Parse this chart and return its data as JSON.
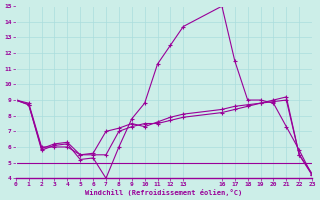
{
  "xlabel": "Windchill (Refroidissement éolien,°C)",
  "bg_color": "#cceee8",
  "line_color": "#990099",
  "grid_color": "#aadddd",
  "xlim": [
    0,
    23
  ],
  "ylim": [
    4,
    15
  ],
  "xticks": [
    0,
    1,
    2,
    3,
    4,
    5,
    6,
    7,
    8,
    9,
    10,
    11,
    12,
    13,
    16,
    17,
    18,
    19,
    20,
    21,
    22,
    23
  ],
  "yticks": [
    4,
    5,
    6,
    7,
    8,
    9,
    10,
    11,
    12,
    13,
    14,
    15
  ],
  "series1_x": [
    0,
    1,
    2,
    3,
    4,
    5,
    6,
    7,
    8,
    9,
    10,
    11,
    12,
    13,
    16,
    17,
    18,
    19,
    20,
    21,
    22,
    23
  ],
  "series1_y": [
    9.0,
    8.7,
    5.8,
    6.1,
    6.2,
    5.2,
    5.3,
    4.0,
    6.0,
    7.8,
    8.8,
    11.3,
    12.5,
    13.7,
    15.0,
    11.5,
    9.0,
    9.0,
    8.8,
    7.3,
    5.8,
    4.2
  ],
  "series2_x": [
    0,
    1,
    2,
    3,
    4,
    5,
    6,
    7,
    8,
    9,
    10,
    11,
    12,
    13,
    16,
    17,
    18,
    19,
    20,
    21,
    22,
    23
  ],
  "series2_y": [
    9.0,
    8.7,
    5.9,
    6.2,
    6.3,
    5.5,
    5.6,
    7.0,
    7.2,
    7.5,
    7.3,
    7.6,
    7.9,
    8.1,
    8.4,
    8.6,
    8.7,
    8.8,
    8.9,
    9.0,
    5.5,
    4.2
  ],
  "series3_x": [
    0,
    23
  ],
  "series3_y": [
    5.0,
    5.0
  ],
  "series4_x": [
    0,
    1,
    2,
    3,
    4,
    5,
    6,
    7,
    8,
    9,
    10,
    11,
    12,
    13,
    16,
    17,
    18,
    19,
    20,
    21,
    22,
    23
  ],
  "series4_y": [
    9.0,
    8.8,
    6.0,
    6.0,
    6.0,
    5.5,
    5.5,
    5.5,
    7.0,
    7.3,
    7.5,
    7.5,
    7.7,
    7.9,
    8.2,
    8.4,
    8.6,
    8.8,
    9.0,
    9.2,
    5.5,
    4.3
  ]
}
